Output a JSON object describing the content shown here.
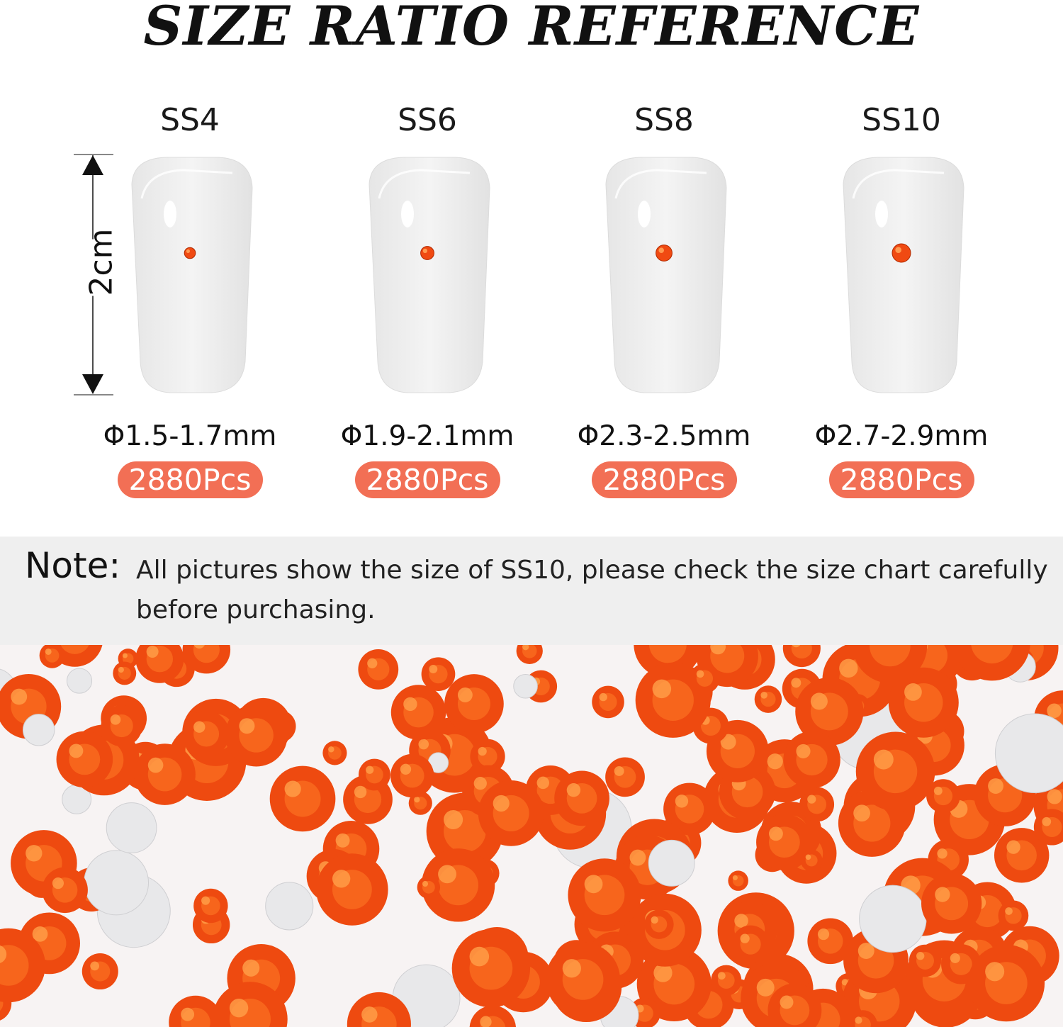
{
  "title": "SIZE RATIO REFERENCE",
  "ruler_label": "2cm",
  "sizes": [
    {
      "label": "SS4",
      "diameter": "Φ1.5-1.7mm",
      "count": "2880Pcs",
      "stone_scale": 0.6
    },
    {
      "label": "SS6",
      "diameter": "Φ1.9-2.1mm",
      "count": "2880Pcs",
      "stone_scale": 0.72
    },
    {
      "label": "SS8",
      "diameter": "Φ2.3-2.5mm",
      "count": "2880Pcs",
      "stone_scale": 0.88
    },
    {
      "label": "SS10",
      "diameter": "Φ2.7-2.9mm",
      "count": "2880Pcs",
      "stone_scale": 1.0
    }
  ],
  "note": {
    "label": "Note:",
    "text": "All pictures show the size of SS10, please check the size chart carefully before purchasing."
  },
  "colors": {
    "badge": "#f26f55",
    "stone": "#f04a12",
    "note_bg": "#efefef"
  }
}
